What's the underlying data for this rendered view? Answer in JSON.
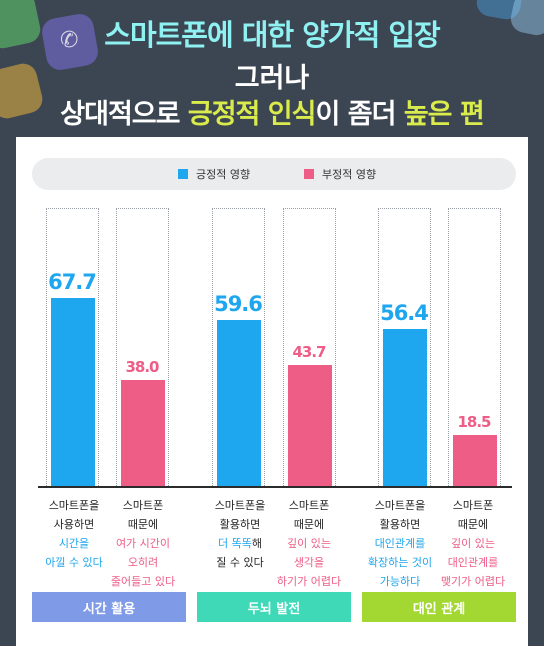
{
  "header": {
    "line1": "스마트폰에 대한 양가적 입장",
    "line2": "그러나",
    "line3_pre": "상대적으로 ",
    "line3_hl1": "긍정적 인식",
    "line3_mid": "이 좀더 ",
    "line3_hl2": "높은 편"
  },
  "legend": {
    "positive": "긍정적 영향",
    "negative": "부정적 영향",
    "positive_color": "#1ea6ee",
    "negative_color": "#ee5d86"
  },
  "chart_data": {
    "type": "bar",
    "categories": [
      "시간 활용",
      "두뇌 발전",
      "대인 관계"
    ],
    "series": [
      {
        "name": "긍정적 영향",
        "values": [
          67.7,
          59.6,
          56.4
        ]
      },
      {
        "name": "부정적 영향",
        "values": [
          38.0,
          43.7,
          18.5
        ]
      }
    ],
    "value_labels": {
      "positive": [
        "67.7",
        "59.6",
        "56.4"
      ],
      "negative": [
        "38.0",
        "43.7",
        "18.5"
      ]
    },
    "ylim": [
      0,
      100
    ],
    "legend_position": "top",
    "grid": false
  },
  "captions": [
    {
      "line1": "스마트폰을",
      "line2": "사용하면",
      "line3": "시간을",
      "line4": "아낄 수 있다"
    },
    {
      "line1": "스마트폰",
      "line2": "때문에",
      "line3": "여가 시간이",
      "line4": "오히려",
      "line5": "줄어들고 있다"
    },
    {
      "line1": "스마트폰을",
      "line2": "활용하면",
      "line3a": "더 똑똑",
      "line3b": "해",
      "line4": "질 수 있다"
    },
    {
      "line1": "스마트폰",
      "line2": "때문에",
      "line3": "깊이 있는",
      "line4": "생각을",
      "line5": "하기가 어렵다"
    },
    {
      "line1": "스마트폰을",
      "line2": "활용하면",
      "line3": "대인관계를",
      "line4": "확장하는 것이",
      "line5": "가능하다"
    },
    {
      "line1": "스마트폰",
      "line2": "때문에",
      "line3": "깊이 있는",
      "line4": "대인관계를",
      "line5": "맺기가 어렵다"
    }
  ],
  "category_buttons": [
    {
      "label": "시간 활용",
      "color": "#7f9ae6"
    },
    {
      "label": "두뇌 발전",
      "color": "#3fd9b8"
    },
    {
      "label": "대인 관계",
      "color": "#a3d833"
    }
  ]
}
